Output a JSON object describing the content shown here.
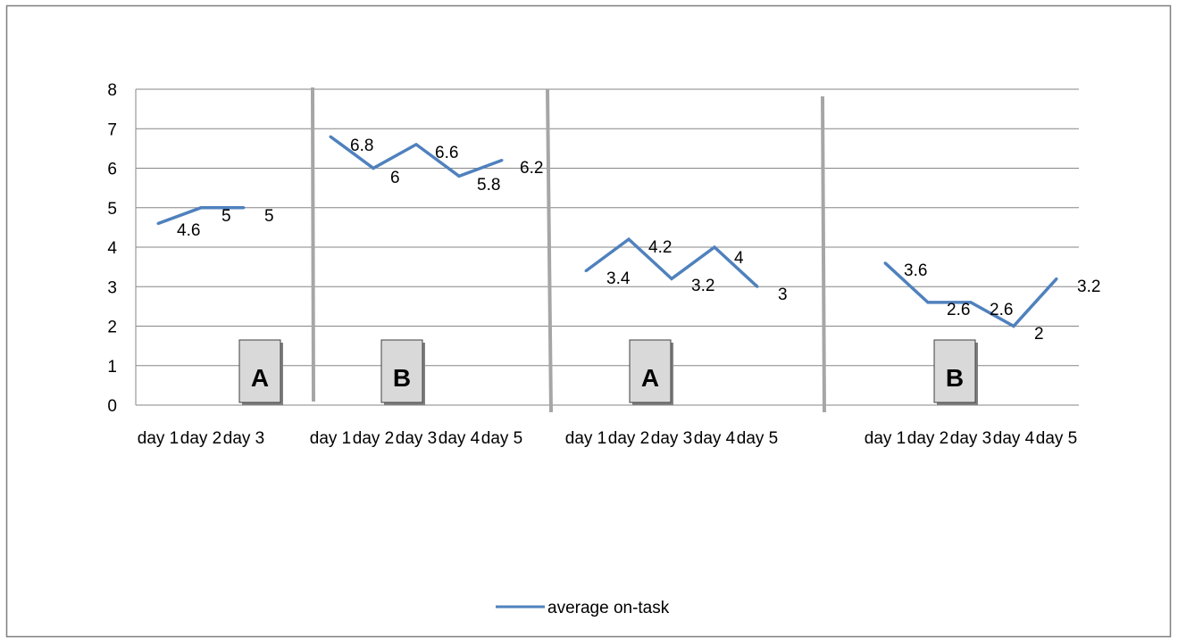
{
  "chart_data": {
    "type": "line",
    "ylim": [
      0,
      8
    ],
    "yticks": [
      "0",
      "1",
      "2",
      "3",
      "4",
      "5",
      "6",
      "7",
      "8"
    ],
    "grid": true,
    "legend_position": "bottom",
    "colors": {
      "series": "#4f81bd",
      "phase_line": "#a6a6a6",
      "grid": "#868686",
      "axis": "#868686"
    },
    "series": [
      {
        "name": "average on-task",
        "phases": [
          {
            "phase": "A",
            "categories": [
              "day 1",
              "day 2",
              "day 3"
            ],
            "values": [
              4.6,
              5,
              5
            ],
            "labels": [
              "4.6",
              "5",
              "5"
            ]
          },
          {
            "phase": "B",
            "categories": [
              "day 1",
              "day 2",
              "day 3",
              "day 4",
              "day 5"
            ],
            "values": [
              6.8,
              6,
              6.6,
              5.8,
              6.2
            ],
            "labels": [
              "6.8",
              "6",
              "6.6",
              "5.8",
              "6.2"
            ]
          },
          {
            "phase": "A",
            "categories": [
              "day 1",
              "day 2",
              "day 3",
              "day 4",
              "day 5"
            ],
            "values": [
              3.4,
              4.2,
              3.2,
              4,
              3
            ],
            "labels": [
              "3.4",
              "4.2",
              "3.2",
              "4",
              "3"
            ]
          },
          {
            "phase": "B",
            "categories": [
              "day 1",
              "day 2",
              "day 3",
              "day 4",
              "day 5"
            ],
            "values": [
              3.6,
              2.6,
              2.6,
              2,
              3.2
            ],
            "labels": [
              "3.6",
              "2.6",
              "2.6",
              "2",
              "3.2"
            ]
          }
        ]
      }
    ]
  }
}
